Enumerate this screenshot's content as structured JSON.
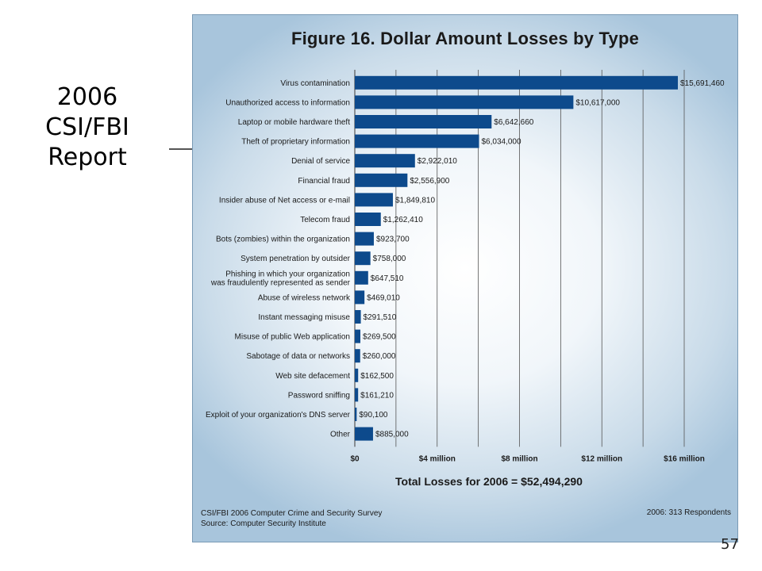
{
  "slide": {
    "title_lines": [
      "2006",
      "CSI/FBI",
      "Report"
    ],
    "page_number": "57"
  },
  "figure": {
    "title": "Figure 16. Dollar Amount Losses by Type",
    "total": "Total Losses for 2006 = $52,494,290",
    "footer_left_1": "CSI/FBI 2006 Computer Crime and Security Survey",
    "footer_left_2": "Source: Computer Security Institute",
    "footer_right": "2006: 313 Respondents"
  },
  "colors": {
    "bar": "#0d4a8c",
    "gridline": "#555555"
  },
  "chart_data": {
    "type": "bar",
    "orientation": "horizontal",
    "title": "Figure 16. Dollar Amount Losses by Type",
    "categories": [
      "Virus contamination",
      "Unauthorized access to information",
      "Laptop or mobile hardware theft",
      "Theft of proprietary information",
      "Denial of service",
      "Financial fraud",
      "Insider abuse of Net access or e-mail",
      "Telecom fraud",
      "Bots (zombies) within the organization",
      "System penetration by outsider",
      "Phishing in which your organization\nwas fraudulently represented as sender",
      "Abuse of wireless network",
      "Instant messaging misuse",
      "Misuse of public Web application",
      "Sabotage of data or networks",
      "Web site defacement",
      "Password sniffing",
      "Exploit of your organization's DNS server",
      "Other"
    ],
    "values": [
      15691460,
      10617000,
      6642660,
      6034000,
      2922010,
      2556900,
      1849810,
      1262410,
      923700,
      758000,
      647510,
      469010,
      291510,
      269500,
      260000,
      162500,
      161210,
      90100,
      885000
    ],
    "value_labels": [
      "$15,691,460",
      "$10,617,000",
      "$6,642,660",
      "$6,034,000",
      "$2,922,010",
      "$2,556,900",
      "$1,849,810",
      "$1,262,410",
      "$923,700",
      "$758,000",
      "$647,510",
      "$469,010",
      "$291,510",
      "$269,500",
      "$260,000",
      "$162,500",
      "$161,210",
      "$90,100",
      "$885,000"
    ],
    "xlim": [
      0,
      16000000
    ],
    "xticks": [
      0,
      4000000,
      8000000,
      12000000,
      16000000
    ],
    "xtick_labels": [
      "$0",
      "$4 million",
      "$8 million",
      "$12 million",
      "$16 million"
    ],
    "grid": true
  }
}
